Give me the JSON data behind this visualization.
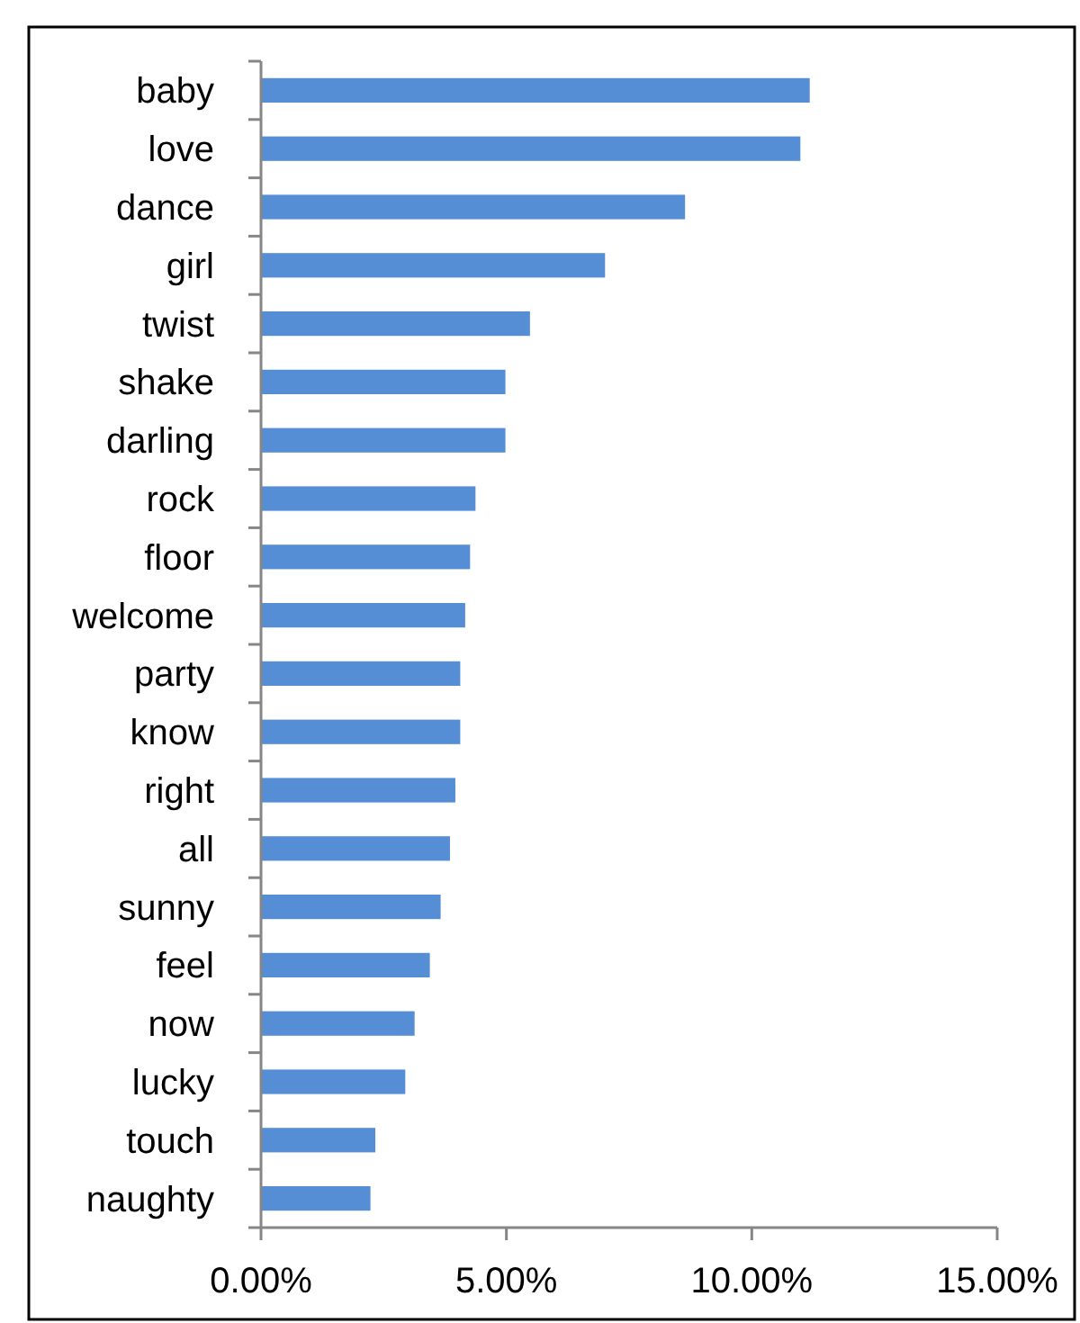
{
  "chart_data": {
    "type": "bar",
    "orientation": "horizontal",
    "categories": [
      "baby",
      "love",
      "dance",
      "girl",
      "twist",
      "shake",
      "darling",
      "rock",
      "floor",
      "welcome",
      "party",
      "know",
      "right",
      "all",
      "sunny",
      "feel",
      "now",
      "lucky",
      "touch",
      "naughty"
    ],
    "values": [
      11.18,
      10.99,
      8.64,
      7.01,
      5.48,
      4.98,
      4.98,
      4.37,
      4.26,
      4.16,
      4.06,
      4.06,
      3.96,
      3.85,
      3.66,
      3.44,
      3.13,
      2.94,
      2.33,
      2.23
    ],
    "color": "#558ed5",
    "xlim": [
      0,
      15
    ],
    "xticks": [
      {
        "value": 0,
        "label": "0.00%"
      },
      {
        "value": 5,
        "label": "5.00%"
      },
      {
        "value": 10,
        "label": "10.00%"
      },
      {
        "value": 15,
        "label": "15.00%"
      }
    ],
    "grid": false
  }
}
